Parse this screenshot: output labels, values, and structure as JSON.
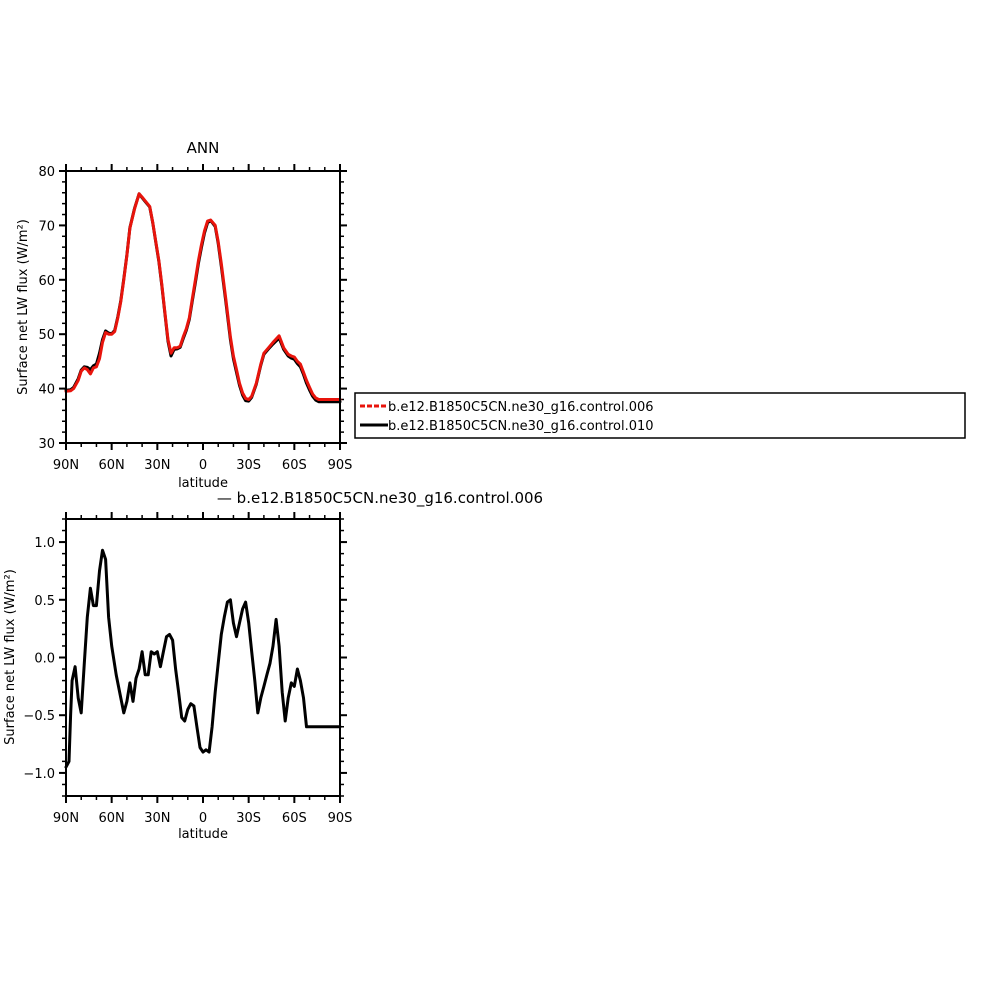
{
  "colors": {
    "ctrl006": "#e8140c",
    "ctrl010": "#000000",
    "diff": "#000000"
  },
  "chart_data": [
    {
      "type": "line",
      "title": "ANN",
      "xlabel": "latitude",
      "ylabel": "Surface net LW flux (W/m²)",
      "xlim": [
        90,
        -90
      ],
      "ylim": [
        30,
        80
      ],
      "xticks": [
        {
          "v": 90,
          "label": "90N"
        },
        {
          "v": 60,
          "label": "60N"
        },
        {
          "v": 30,
          "label": "30N"
        },
        {
          "v": 0,
          "label": "0"
        },
        {
          "v": -30,
          "label": "30S"
        },
        {
          "v": -60,
          "label": "60S"
        },
        {
          "v": -90,
          "label": "90S"
        }
      ],
      "yticks": [
        {
          "v": 30,
          "label": "30"
        },
        {
          "v": 40,
          "label": "40"
        },
        {
          "v": 50,
          "label": "50"
        },
        {
          "v": 60,
          "label": "60"
        },
        {
          "v": 70,
          "label": "70"
        },
        {
          "v": 80,
          "label": "80"
        }
      ],
      "legend": [
        "b.e12.B1850C5CN.ne30_g16.control.006",
        "b.e12.B1850C5CN.ne30_g16.control.010"
      ],
      "legend_position": "right",
      "series": [
        {
          "name": "b.e12.B1850C5CN.ne30_g16.control.006",
          "x": [
            90,
            87,
            85,
            82,
            80,
            78,
            76,
            74,
            72,
            70,
            68,
            66,
            64,
            62,
            60,
            58,
            56,
            54,
            52,
            50,
            48,
            45,
            42,
            40,
            38,
            35,
            33,
            31,
            29,
            27,
            25,
            23,
            21,
            19,
            17,
            15,
            13,
            11,
            9,
            7,
            5,
            3,
            1,
            -1,
            -3,
            -5,
            -8,
            -10,
            -12,
            -15,
            -18,
            -20,
            -22,
            -24,
            -26,
            -28,
            -30,
            -32,
            -35,
            -38,
            -40,
            -43,
            -46,
            -50,
            -53,
            -56,
            -58,
            -60,
            -62,
            -64,
            -66,
            -68,
            -70,
            -72,
            -74,
            -76,
            -78,
            -80,
            -82,
            -84,
            -86,
            -88,
            -90
          ],
          "y": [
            39.5,
            39.6,
            40.0,
            41.5,
            43.2,
            43.8,
            43.5,
            42.7,
            43.8,
            44.0,
            45.5,
            48.5,
            50.3,
            50.0,
            50.0,
            50.5,
            53.0,
            56.0,
            60.0,
            64.5,
            69.5,
            73.0,
            75.8,
            75.2,
            74.5,
            73.5,
            70.5,
            67.0,
            63.5,
            59.0,
            54.0,
            49.0,
            46.5,
            47.5,
            47.5,
            47.8,
            49.5,
            51.0,
            53.0,
            56.5,
            60.0,
            63.5,
            66.5,
            69.0,
            70.8,
            71.0,
            70.0,
            67.0,
            63.0,
            56.5,
            49.5,
            46.0,
            43.5,
            41.0,
            39.2,
            38.2,
            38.0,
            38.6,
            41.0,
            44.5,
            46.5,
            47.5,
            48.5,
            49.7,
            47.5,
            46.3,
            46.0,
            45.8,
            45.0,
            44.5,
            43.0,
            41.5,
            40.2,
            39.0,
            38.3,
            38.0,
            38.0,
            38.0,
            38.0,
            38.0,
            38.0,
            38.0,
            38.0
          ]
        },
        {
          "name": "b.e12.B1850C5CN.ne30_g16.control.010",
          "x": [
            90,
            87,
            85,
            82,
            80,
            78,
            76,
            74,
            72,
            70,
            68,
            66,
            64,
            62,
            60,
            58,
            56,
            54,
            52,
            50,
            48,
            45,
            42,
            40,
            38,
            35,
            33,
            31,
            29,
            27,
            25,
            23,
            21,
            19,
            17,
            15,
            13,
            11,
            9,
            7,
            5,
            3,
            1,
            -1,
            -3,
            -5,
            -8,
            -10,
            -12,
            -15,
            -18,
            -20,
            -22,
            -24,
            -26,
            -28,
            -30,
            -32,
            -35,
            -38,
            -40,
            -43,
            -46,
            -50,
            -53,
            -56,
            -58,
            -60,
            -62,
            -64,
            -66,
            -68,
            -70,
            -72,
            -74,
            -76,
            -78,
            -80,
            -82,
            -84,
            -86,
            -88,
            -90
          ],
          "y": [
            39.7,
            39.8,
            40.2,
            41.8,
            43.4,
            44.0,
            43.9,
            43.5,
            44.2,
            44.5,
            46.5,
            49.0,
            50.6,
            50.2,
            50.1,
            50.7,
            53.2,
            56.2,
            60.2,
            64.6,
            69.6,
            73.1,
            75.8,
            75.1,
            74.4,
            73.4,
            70.4,
            66.9,
            63.3,
            58.8,
            53.8,
            48.7,
            46.0,
            47.2,
            47.3,
            47.6,
            49.2,
            50.7,
            52.7,
            56.1,
            59.5,
            63.0,
            66.0,
            68.6,
            70.5,
            70.9,
            69.8,
            66.7,
            62.5,
            56.0,
            49.0,
            45.5,
            43.0,
            40.6,
            38.8,
            37.8,
            37.7,
            38.4,
            40.8,
            44.3,
            46.3,
            47.3,
            48.2,
            49.3,
            47.2,
            46.0,
            45.6,
            45.4,
            44.6,
            44.0,
            42.6,
            41.0,
            39.7,
            38.6,
            37.9,
            37.6,
            37.6,
            37.6,
            37.6,
            37.6,
            37.6,
            37.6,
            37.6
          ]
        }
      ]
    },
    {
      "type": "line",
      "title": "— b.e12.B1850C5CN.ne30_g16.control.006",
      "xlabel": "latitude",
      "ylabel": "Surface net LW flux (W/m²)",
      "xlim": [
        90,
        -90
      ],
      "ylim": [
        -1.2,
        1.2
      ],
      "xticks": [
        {
          "v": 90,
          "label": "90N"
        },
        {
          "v": 60,
          "label": "60N"
        },
        {
          "v": 30,
          "label": "30N"
        },
        {
          "v": 0,
          "label": "0"
        },
        {
          "v": -30,
          "label": "30S"
        },
        {
          "v": -60,
          "label": "60S"
        },
        {
          "v": -90,
          "label": "90S"
        }
      ],
      "yticks": [
        {
          "v": -1.0,
          "label": "−1.0"
        },
        {
          "v": -0.5,
          "label": "−0.5"
        },
        {
          "v": 0.0,
          "label": "0.0"
        },
        {
          "v": 0.5,
          "label": "0.5"
        },
        {
          "v": 1.0,
          "label": "1.0"
        }
      ],
      "series": [
        {
          "name": "",
          "x": [
            90,
            88,
            87,
            86,
            84,
            82,
            80,
            78,
            76,
            74,
            72,
            70,
            68,
            66,
            64,
            62,
            60,
            57,
            54,
            52,
            50,
            48,
            46,
            44,
            42,
            40,
            38,
            36,
            34,
            32,
            30,
            28,
            26,
            24,
            22,
            20,
            18,
            16,
            14,
            12,
            10,
            8,
            6,
            4,
            2,
            0,
            -2,
            -4,
            -6,
            -8,
            -10,
            -12,
            -14,
            -16,
            -18,
            -20,
            -22,
            -24,
            -26,
            -28,
            -30,
            -32,
            -34,
            -36,
            -38,
            -40,
            -42,
            -44,
            -46,
            -48,
            -50,
            -52,
            -54,
            -56,
            -58,
            -60,
            -62,
            -64,
            -66,
            -68,
            -70,
            -72,
            -74,
            -76,
            -78,
            -80,
            -82,
            -84,
            -86,
            -88,
            -90
          ],
          "y": [
            -0.95,
            -0.9,
            -0.5,
            -0.2,
            -0.08,
            -0.35,
            -0.48,
            -0.05,
            0.35,
            0.6,
            0.45,
            0.45,
            0.75,
            0.93,
            0.85,
            0.35,
            0.1,
            -0.15,
            -0.35,
            -0.48,
            -0.38,
            -0.22,
            -0.38,
            -0.18,
            -0.1,
            0.05,
            -0.15,
            -0.15,
            0.05,
            0.03,
            0.05,
            -0.08,
            0.05,
            0.18,
            0.2,
            0.15,
            -0.1,
            -0.3,
            -0.52,
            -0.55,
            -0.45,
            -0.4,
            -0.42,
            -0.6,
            -0.78,
            -0.82,
            -0.8,
            -0.82,
            -0.6,
            -0.3,
            -0.05,
            0.2,
            0.35,
            0.48,
            0.5,
            0.3,
            0.18,
            0.3,
            0.42,
            0.48,
            0.3,
            0.05,
            -0.2,
            -0.48,
            -0.35,
            -0.25,
            -0.15,
            -0.05,
            0.1,
            0.33,
            0.1,
            -0.3,
            -0.55,
            -0.35,
            -0.22,
            -0.25,
            -0.1,
            -0.2,
            -0.35,
            -0.6,
            -0.6,
            -0.6,
            -0.6,
            -0.6,
            -0.6,
            -0.6,
            -0.6,
            -0.6,
            -0.6,
            -0.6,
            -0.6
          ]
        }
      ]
    }
  ]
}
